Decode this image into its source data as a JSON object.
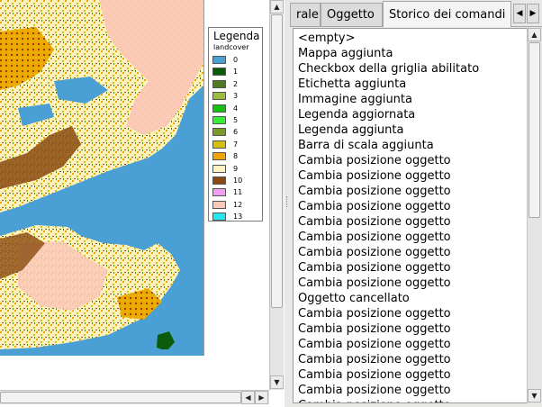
{
  "legend": {
    "title": "Legenda",
    "layer_name": "landcover",
    "items": [
      {
        "label": "0",
        "color": "#4aa0d4"
      },
      {
        "label": "1",
        "color": "#0a5c0a"
      },
      {
        "label": "2",
        "color": "#4f7a1f"
      },
      {
        "label": "3",
        "color": "#9dbb3c"
      },
      {
        "label": "4",
        "color": "#11c411"
      },
      {
        "label": "5",
        "color": "#36ee36"
      },
      {
        "label": "6",
        "color": "#7c9a28"
      },
      {
        "label": "7",
        "color": "#d4c20a"
      },
      {
        "label": "8",
        "color": "#f0a500"
      },
      {
        "label": "9",
        "color": "#fdf3c0"
      },
      {
        "label": "10",
        "color": "#8a4a10"
      },
      {
        "label": "11",
        "color": "#f0a0f0"
      },
      {
        "label": "12",
        "color": "#fcc8b8"
      },
      {
        "label": "13",
        "color": "#22e8f0"
      }
    ]
  },
  "tabs": [
    {
      "label": "rale"
    },
    {
      "label": "Oggetto"
    },
    {
      "label": "Storico dei comandi",
      "active": true
    }
  ],
  "history": [
    "<empty>",
    "Mappa aggiunta",
    "Checkbox della griglia abilitato",
    "Etichetta aggiunta",
    "Immagine aggiunta",
    "Legenda aggiornata",
    "Legenda aggiunta",
    "Barra di scala aggiunta",
    "Cambia posizione oggetto",
    "Cambia posizione oggetto",
    "Cambia posizione oggetto",
    "Cambia posizione oggetto",
    "Cambia posizione oggetto",
    "Cambia posizione oggetto",
    "Cambia posizione oggetto",
    "Cambia posizione oggetto",
    "Cambia posizione oggetto",
    "Oggetto cancellato",
    "Cambia posizione oggetto",
    "Cambia posizione oggetto",
    "Cambia posizione oggetto",
    "Cambia posizione oggetto",
    "Cambia posizione oggetto",
    "Cambia posizione oggetto",
    "Cambia posizione oggetto"
  ],
  "icons": {
    "tab_prev": "triangle-left-icon",
    "tab_next": "triangle-right-icon",
    "scroll_up": "triangle-up-icon",
    "scroll_down": "triangle-down-icon",
    "scroll_left": "triangle-left-icon",
    "scroll_right": "triangle-right-icon"
  }
}
